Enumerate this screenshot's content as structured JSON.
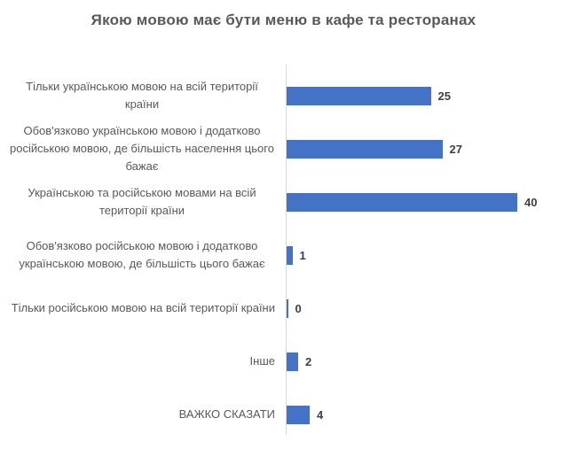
{
  "chart_data": {
    "type": "bar",
    "orientation": "horizontal",
    "title": "Якою мовою має бути меню в кафе та ресторанах",
    "categories": [
      "Тільки українською мовою на всій території країни",
      "Обов'язково українською мовою і додатково російською мовою, де більшість населення цього бажає",
      "Українською та російською мовами на всій території країни",
      "Обов'язково російською мовою і додатково українською мовою, де більшість цього бажає",
      "Тільки російською мовою на всій території країни",
      "Інше",
      "ВАЖКО СКАЗАТИ"
    ],
    "values": [
      25,
      27,
      40,
      1,
      0,
      2,
      4
    ],
    "xlim": [
      0,
      45
    ],
    "xlabel": "",
    "ylabel": "",
    "grid": false,
    "legend": false,
    "data_labels": "outside-end",
    "bar_color": "#4472C4",
    "axis_line_color": "#D9D9D9",
    "category_label_color": "#595959",
    "value_label_color": "#404040",
    "title_color": "#595959",
    "background_color": "#FFFFFF"
  }
}
